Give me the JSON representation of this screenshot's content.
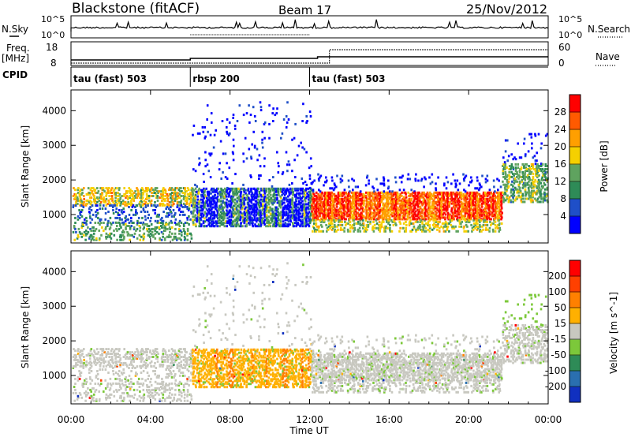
{
  "header": {
    "station": "Blackstone (fitACF)",
    "beam": "Beam 17",
    "date": "25/Nov/2012"
  },
  "top_panels": {
    "nsky_label": "N.Sky",
    "nsky_ticks": [
      "10^5",
      "10^0"
    ],
    "nsearch_label": "N.Search",
    "nsearch_ticks": [
      "10^5",
      "10^0"
    ],
    "freq_label": "Freq.",
    "freq_unit": "[MHz]",
    "freq_ticks": [
      "18",
      "8"
    ],
    "nave_label": "Nave",
    "nave_ticks": [
      "60",
      "0"
    ],
    "cpid_label": "CPID",
    "cpid_segments": [
      {
        "label": "tau (fast) 503",
        "start": 0,
        "end": 6
      },
      {
        "label": "rbsp 200",
        "start": 6,
        "end": 12
      },
      {
        "label": "tau (fast) 503",
        "start": 12,
        "end": 24
      }
    ]
  },
  "chart_data": [
    {
      "type": "heatmap",
      "title": "",
      "xlabel": "Time UT",
      "ylabel": "Slant Range [km]",
      "xlim": [
        0,
        24
      ],
      "ylim": [
        180,
        4600
      ],
      "x_ticks": [
        "00:00",
        "04:00",
        "08:00",
        "12:00",
        "16:00",
        "20:00",
        "00:00"
      ],
      "x_tick_values": [
        0,
        4,
        8,
        12,
        16,
        20,
        24
      ],
      "y_ticks": [
        1000,
        2000,
        3000,
        4000
      ],
      "colorbar": {
        "label": "Power [dB]",
        "ticks": [
          "28",
          "24",
          "20",
          "16",
          "12",
          "8",
          "4"
        ],
        "range": [
          0,
          30
        ],
        "colors": [
          "#0000ff",
          "#1f4fc8",
          "#2e8b57",
          "#5fa35f",
          "#f5d000",
          "#ff9f00",
          "#ff5a00",
          "#ff0000"
        ]
      }
    },
    {
      "type": "heatmap",
      "title": "",
      "xlabel": "Time UT",
      "ylabel": "Slant Range [km]",
      "xlim": [
        0,
        24
      ],
      "ylim": [
        180,
        4600
      ],
      "x_ticks": [
        "00:00",
        "04:00",
        "08:00",
        "12:00",
        "16:00",
        "20:00",
        "00:00"
      ],
      "x_tick_values": [
        0,
        4,
        8,
        12,
        16,
        20,
        24
      ],
      "y_ticks": [
        1000,
        2000,
        3000,
        4000
      ],
      "colorbar": {
        "label": "Velocity [m s^-1]",
        "ticks": [
          "200",
          "100",
          "50",
          "15",
          "-15",
          "-50",
          "-100",
          "-200"
        ],
        "colors": [
          "#1030c0",
          "#2a6fb0",
          "#2e8b57",
          "#7cc83a",
          "#c8c8c0",
          "#ffb000",
          "#ff8000",
          "#ff4000",
          "#ff0000"
        ]
      }
    }
  ]
}
